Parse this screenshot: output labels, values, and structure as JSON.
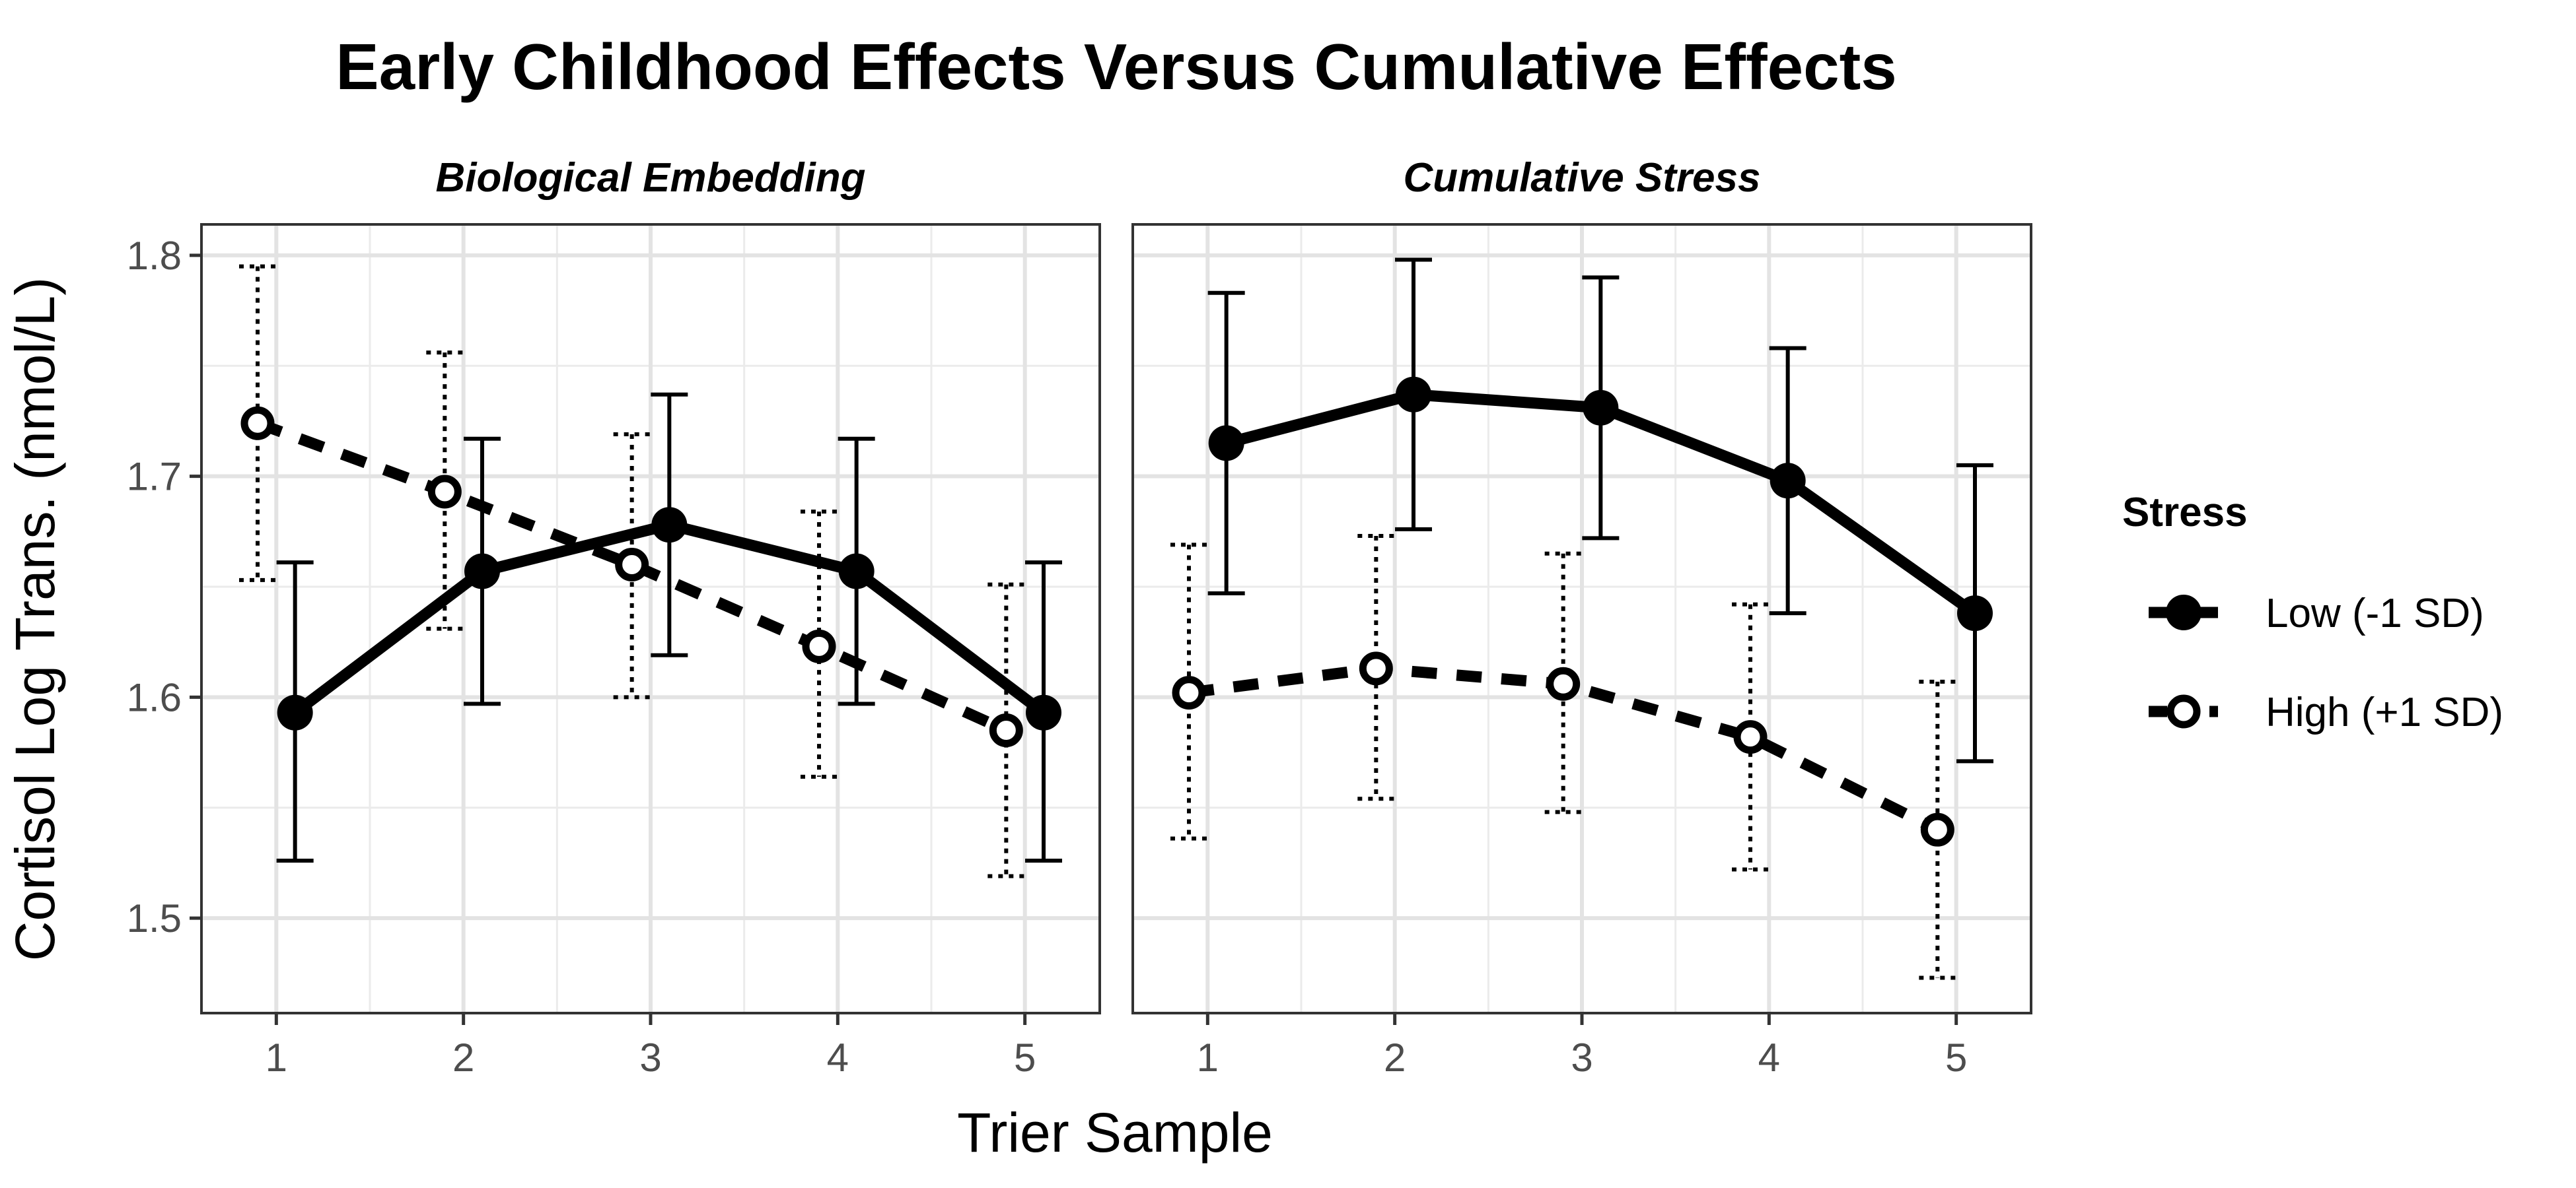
{
  "chart_data": {
    "type": "line",
    "title": "Early Childhood Effects Versus Cumulative Effects",
    "xlabel": "Trier Sample",
    "ylabel": "Cortisol Log Trans. (nmol/L)",
    "xlim": [
      0.6,
      5.4
    ],
    "ylim": [
      1.457,
      1.814
    ],
    "x_ticks": [
      1,
      2,
      3,
      4,
      5
    ],
    "y_ticks": [
      1.5,
      1.6,
      1.7,
      1.8
    ],
    "y_tick_labels": [
      "1.5",
      "1.6",
      "1.7",
      "1.8"
    ],
    "grid": true,
    "legend": {
      "title": "Stress",
      "position": "right",
      "entries": [
        "Low (-1 SD)",
        "High (+1 SD)"
      ]
    },
    "panels": [
      {
        "title": "Biological Embedding",
        "series": [
          {
            "name": "Low (-1 SD)",
            "line_style": "solid",
            "marker": "filled-circle",
            "x": [
              1,
              2,
              3,
              4,
              5
            ],
            "y": [
              1.593,
              1.657,
              1.678,
              1.657,
              1.593
            ],
            "error_low": [
              1.526,
              1.597,
              1.619,
              1.597,
              1.526
            ],
            "error_high": [
              1.661,
              1.717,
              1.737,
              1.717,
              1.661
            ]
          },
          {
            "name": "High (+1 SD)",
            "line_style": "dashed",
            "marker": "open-circle",
            "x": [
              1,
              2,
              3,
              4,
              5
            ],
            "y": [
              1.724,
              1.693,
              1.66,
              1.623,
              1.585
            ],
            "error_low": [
              1.653,
              1.631,
              1.6,
              1.564,
              1.519
            ],
            "error_high": [
              1.795,
              1.756,
              1.719,
              1.684,
              1.651
            ]
          }
        ]
      },
      {
        "title": "Cumulative Stress",
        "series": [
          {
            "name": "Low (-1 SD)",
            "line_style": "solid",
            "marker": "filled-circle",
            "x": [
              1,
              2,
              3,
              4,
              5
            ],
            "y": [
              1.715,
              1.737,
              1.731,
              1.698,
              1.638
            ],
            "error_low": [
              1.647,
              1.676,
              1.672,
              1.638,
              1.571
            ],
            "error_high": [
              1.783,
              1.798,
              1.79,
              1.758,
              1.705
            ]
          },
          {
            "name": "High (+1 SD)",
            "line_style": "dashed",
            "marker": "open-circle",
            "x": [
              1,
              2,
              3,
              4,
              5
            ],
            "y": [
              1.602,
              1.613,
              1.606,
              1.582,
              1.54
            ],
            "error_low": [
              1.536,
              1.554,
              1.548,
              1.522,
              1.473
            ],
            "error_high": [
              1.669,
              1.673,
              1.665,
              1.642,
              1.607
            ]
          }
        ]
      }
    ]
  }
}
